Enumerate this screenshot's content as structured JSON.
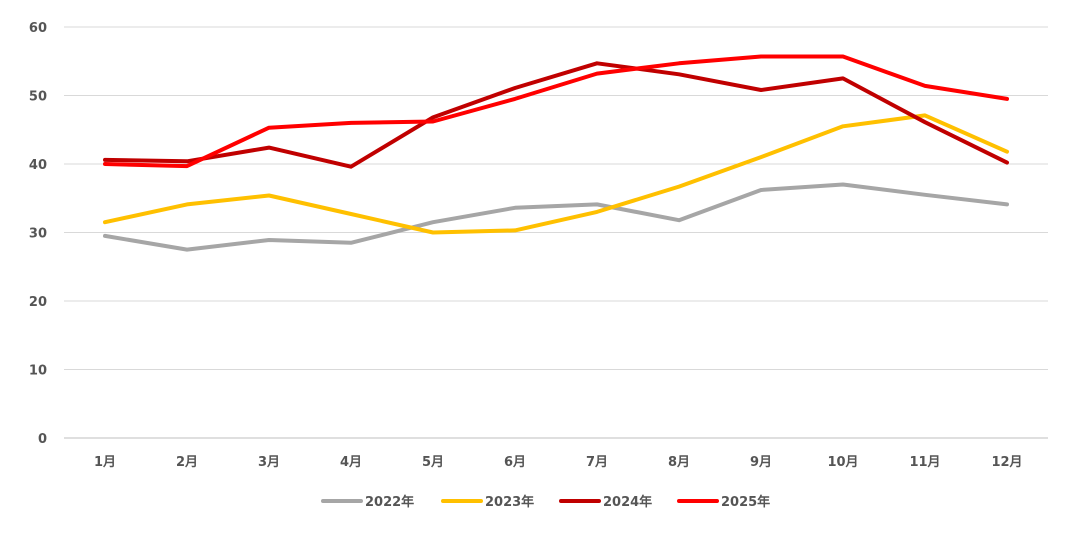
{
  "chart_data": {
    "type": "line",
    "categories": [
      "1月",
      "2月",
      "3月",
      "4月",
      "5月",
      "6月",
      "7月",
      "8月",
      "9月",
      "10月",
      "11月",
      "12月"
    ],
    "series": [
      {
        "name": "2022年",
        "color": "#A6A6A6",
        "values": [
          29.5,
          27.5,
          28.9,
          28.5,
          31.5,
          33.6,
          34.1,
          31.8,
          36.2,
          37.0,
          35.5,
          34.1
        ]
      },
      {
        "name": "2023年",
        "color": "#FFC000",
        "values": [
          31.5,
          34.1,
          35.4,
          32.7,
          30.0,
          30.3,
          33.0,
          36.7,
          41.0,
          45.5,
          47.1,
          41.8
        ]
      },
      {
        "name": "2024年",
        "color": "#C00000",
        "values": [
          40.6,
          40.4,
          42.4,
          39.6,
          46.8,
          51.1,
          54.7,
          53.1,
          50.8,
          52.5,
          46.1,
          40.2
        ]
      },
      {
        "name": "2025年",
        "color": "#FF0000",
        "values": [
          40.0,
          39.7,
          45.3,
          46.0,
          46.2,
          49.5,
          53.2,
          54.7,
          55.7,
          55.7,
          51.4,
          49.5
        ]
      }
    ],
    "yticks": [
      0,
      10,
      20,
      30,
      40,
      50,
      60
    ],
    "ylim": [
      0,
      60
    ],
    "grid": true,
    "legend_position": "bottom"
  }
}
